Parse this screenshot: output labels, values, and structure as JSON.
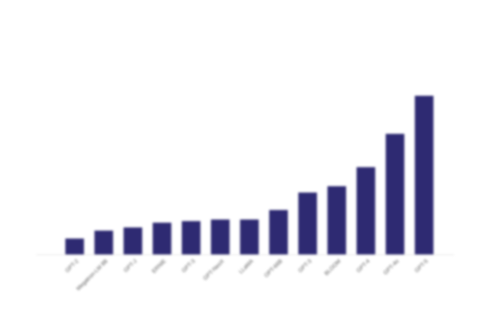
{
  "chart_data": {
    "type": "bar",
    "categories": [
      "GPT-2",
      "Megatron-LM 8B",
      "GPT-J",
      "ERNIE",
      "GPT-3",
      "GPT-NeoX",
      "LLaMA",
      "OPT-66B",
      "GPT-3",
      "BLOOM",
      "GPT-4",
      "GPT-4o",
      "GPT-5"
    ],
    "values": [
      10,
      15,
      17,
      20,
      21,
      22,
      22,
      28,
      39,
      43,
      55,
      76,
      100
    ],
    "title": "",
    "xlabel": "",
    "ylabel": "",
    "ylim": [
      0,
      100
    ],
    "grid": false,
    "legend": "none",
    "bar_color": "#2e2a72",
    "axis_color": "#e4e4e4"
  }
}
